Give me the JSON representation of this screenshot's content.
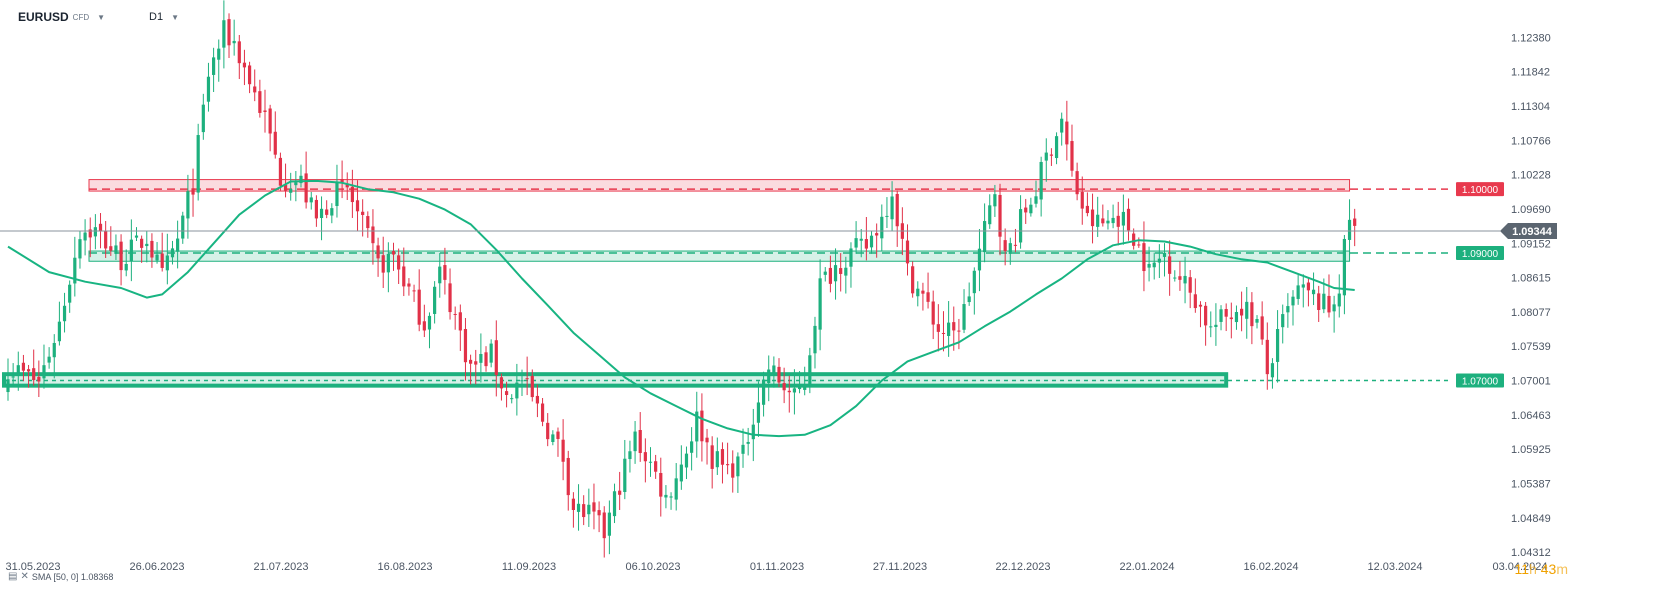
{
  "header": {
    "symbol": "EURUSD",
    "instrument_type": "CFD",
    "timeframe": "D1"
  },
  "indicator": {
    "label": "SMA [50, 0] 1.08368"
  },
  "timer": {
    "hours": "11",
    "hours_unit": "h",
    "minutes": "43",
    "minutes_unit": "m"
  },
  "colors": {
    "up": "#1db07e",
    "down": "#e13148",
    "sma": "#18b482",
    "resistance": "#e8394d",
    "support": "#1db07e",
    "price_tag": "#5b6570"
  },
  "chart_data": {
    "type": "candlestick",
    "symbol": "EURUSD",
    "timeframe": "D1",
    "y_ticks": [
      1.1238,
      1.11842,
      1.11304,
      1.10766,
      1.10228,
      1.0969,
      1.09152,
      1.08615,
      1.08077,
      1.07539,
      1.07001,
      1.06463,
      1.05925,
      1.05387,
      1.04849,
      1.04312
    ],
    "y_tick_labels": [
      "1.12380",
      "1.11842",
      "1.11304",
      "1.10766",
      "1.10228",
      "1.09690",
      "1.09152",
      "1.08615",
      "1.08077",
      "1.07539",
      "1.07001",
      "1.06463",
      "1.05925",
      "1.05387",
      "1.04849",
      "1.04312"
    ],
    "x_labels": [
      "31.05.2023",
      "26.06.2023",
      "21.07.2023",
      "16.08.2023",
      "11.09.2023",
      "06.10.2023",
      "01.11.2023",
      "27.11.2023",
      "22.12.2023",
      "22.01.2024",
      "16.02.2024",
      "12.03.2024",
      "03.04.2024"
    ],
    "ylim": [
      1.0425,
      1.1262
    ],
    "current_price": 1.09344,
    "current_price_label": "1.09344",
    "levels": [
      {
        "price": 1.1,
        "label": "1.10000",
        "color": "#e8394d",
        "zone": [
          1.0997,
          1.1015
        ],
        "zone_end_index": 261,
        "style": "dashed"
      },
      {
        "price": 1.09,
        "label": "1.09000",
        "color": "#1db07e",
        "zone": [
          1.0887,
          1.0903
        ],
        "zone_end_index": 261,
        "style": "dashed"
      },
      {
        "price": 1.07,
        "label": "1.07000",
        "color": "#1db07e",
        "zone": [
          1.0692,
          1.071
        ],
        "zone_end_index": 237,
        "style": "dotted"
      }
    ],
    "indicator": {
      "name": "SMA",
      "period": 50,
      "shift": 0,
      "value": 1.08368
    },
    "anchors": [
      [
        0,
        1.0722
      ],
      [
        6,
        1.0698
      ],
      [
        10,
        1.079
      ],
      [
        14,
        1.0935
      ],
      [
        17,
        1.0935
      ],
      [
        22,
        1.089
      ],
      [
        27,
        1.0925
      ],
      [
        30,
        1.086
      ],
      [
        33,
        1.092
      ],
      [
        36,
        1.101
      ],
      [
        39,
        1.118
      ],
      [
        42,
        1.1245
      ],
      [
        44,
        1.123
      ],
      [
        47,
        1.117
      ],
      [
        50,
        1.111
      ],
      [
        53,
        1.102
      ],
      [
        57,
        1.101
      ],
      [
        60,
        1.095
      ],
      [
        63,
        1.099
      ],
      [
        66,
        1.1
      ],
      [
        69,
        1.094
      ],
      [
        72,
        1.088
      ],
      [
        75,
        1.0895
      ],
      [
        78,
        1.084
      ],
      [
        81,
        1.079
      ],
      [
        84,
        1.087
      ],
      [
        87,
        1.08
      ],
      [
        90,
        1.072
      ],
      [
        94,
        1.074
      ],
      [
        97,
        1.0675
      ],
      [
        100,
        1.07
      ],
      [
        104,
        1.064
      ],
      [
        108,
        1.058
      ],
      [
        110,
        1.05
      ],
      [
        113,
        1.049
      ],
      [
        116,
        1.046
      ],
      [
        119,
        1.054
      ],
      [
        122,
        1.061
      ],
      [
        125,
        1.057
      ],
      [
        128,
        1.0515
      ],
      [
        131,
        1.057
      ],
      [
        134,
        1.064
      ],
      [
        137,
        1.058
      ],
      [
        140,
        1.056
      ],
      [
        143,
        1.058
      ],
      [
        145,
        1.065
      ],
      [
        148,
        1.072
      ],
      [
        150,
        1.07
      ],
      [
        153,
        1.067
      ],
      [
        155,
        1.07
      ],
      [
        158,
        1.085
      ],
      [
        161,
        1.088
      ],
      [
        164,
        1.09
      ],
      [
        167,
        1.091
      ],
      [
        170,
        1.0955
      ],
      [
        172,
        1.1
      ],
      [
        175,
        1.087
      ],
      [
        178,
        1.083
      ],
      [
        181,
        1.078
      ],
      [
        184,
        1.077
      ],
      [
        186,
        1.081
      ],
      [
        189,
        1.09
      ],
      [
        192,
        1.1
      ],
      [
        194,
        1.089
      ],
      [
        197,
        1.095
      ],
      [
        200,
        1.1
      ],
      [
        202,
        1.105
      ],
      [
        205,
        1.111
      ],
      [
        207,
        1.102
      ],
      [
        210,
        1.095
      ],
      [
        213,
        1.0945
      ],
      [
        216,
        1.096
      ],
      [
        219,
        1.093
      ],
      [
        222,
        1.087
      ],
      [
        225,
        1.09
      ],
      [
        228,
        1.086
      ],
      [
        231,
        1.083
      ],
      [
        234,
        1.078
      ],
      [
        237,
        1.08
      ],
      [
        240,
        1.082
      ],
      [
        243,
        1.079
      ],
      [
        245,
        1.071
      ],
      [
        248,
        1.079
      ],
      [
        251,
        1.084
      ],
      [
        254,
        1.083
      ],
      [
        257,
        1.081
      ],
      [
        259,
        1.085
      ],
      [
        261,
        1.0955
      ],
      [
        262,
        1.0934
      ]
    ],
    "sma_anchors": [
      [
        0,
        1.091
      ],
      [
        8,
        1.087
      ],
      [
        15,
        1.0855
      ],
      [
        22,
        1.0845
      ],
      [
        27,
        1.083
      ],
      [
        30,
        1.0835
      ],
      [
        35,
        1.087
      ],
      [
        40,
        1.0915
      ],
      [
        45,
        1.096
      ],
      [
        50,
        1.099
      ],
      [
        55,
        1.1012
      ],
      [
        60,
        1.1013
      ],
      [
        65,
        1.101
      ],
      [
        70,
        1.1
      ],
      [
        75,
        1.0995
      ],
      [
        80,
        1.0985
      ],
      [
        85,
        1.0968
      ],
      [
        90,
        1.0945
      ],
      [
        95,
        1.0905
      ],
      [
        100,
        1.086
      ],
      [
        105,
        1.0818
      ],
      [
        110,
        1.0775
      ],
      [
        115,
        1.074
      ],
      [
        120,
        1.0705
      ],
      [
        125,
        1.068
      ],
      [
        130,
        1.066
      ],
      [
        135,
        1.064
      ],
      [
        140,
        1.0625
      ],
      [
        145,
        1.0615
      ],
      [
        150,
        1.0613
      ],
      [
        155,
        1.0615
      ],
      [
        160,
        1.063
      ],
      [
        165,
        1.066
      ],
      [
        170,
        1.07
      ],
      [
        175,
        1.073
      ],
      [
        180,
        1.0745
      ],
      [
        185,
        1.076
      ],
      [
        190,
        1.0785
      ],
      [
        195,
        1.0808
      ],
      [
        200,
        1.0835
      ],
      [
        205,
        1.086
      ],
      [
        210,
        1.089
      ],
      [
        215,
        1.0912
      ],
      [
        220,
        1.092
      ],
      [
        225,
        1.0918
      ],
      [
        230,
        1.091
      ],
      [
        235,
        1.0898
      ],
      [
        240,
        1.089
      ],
      [
        245,
        1.0885
      ],
      [
        250,
        1.087
      ],
      [
        255,
        1.0855
      ],
      [
        258,
        1.0845
      ],
      [
        262,
        1.0842
      ]
    ],
    "grid": false,
    "legend": "none"
  }
}
